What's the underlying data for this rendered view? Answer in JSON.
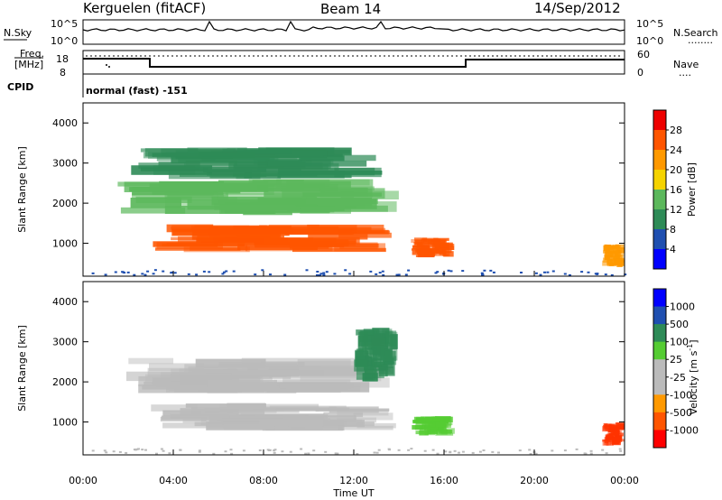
{
  "header": {
    "station": "Kerguelen (fitACF)",
    "beam": "Beam 14",
    "date": "14/Sep/2012"
  },
  "noise_panel": {
    "left_label": "N.Sky",
    "right_label": "N.Search",
    "right_dots": "........",
    "left_ticks": [
      "10^5",
      "10^0"
    ],
    "right_ticks": [
      "10^5",
      "10^0"
    ]
  },
  "freq_panel": {
    "label_line1": "Freq.",
    "label_line2": "[MHz]",
    "right_label": "Nave",
    "right_dots": "....",
    "left_ticks": [
      "18",
      "8"
    ],
    "right_ticks": [
      "60",
      "0"
    ]
  },
  "cpid": {
    "label": "CPID",
    "program": "normal (fast) -151"
  },
  "colors": {
    "power_scale": [
      "#0000ff",
      "#1f4fb0",
      "#2e8b57",
      "#5cb85c",
      "#f5d300",
      "#ff9900",
      "#ff5500",
      "#ee0000"
    ],
    "velocity_scale": [
      "#ff0000",
      "#ff5500",
      "#ff9900",
      "#bbbbbb",
      "#bbbbbb",
      "#55cc33",
      "#2e8b57",
      "#1f4fb0",
      "#0000ff"
    ],
    "ground_scatter": "#bbbbbb"
  },
  "chart_data": [
    {
      "type": "heatmap",
      "title": "",
      "xlabel": "",
      "ylabel": "Slant Range [km]",
      "x_range": [
        "00:00",
        "00:00"
      ],
      "y_range_km": [
        180,
        4500
      ],
      "y_ticks": [
        1000,
        2000,
        3000,
        4000
      ],
      "colorbar": {
        "label": "Power [dB]",
        "ticks": [
          4,
          8,
          12,
          16,
          20,
          24,
          28
        ],
        "range": [
          0,
          32
        ]
      },
      "features": [
        {
          "t_start": 3.0,
          "t_end": 14.0,
          "r_start": 780,
          "r_end": 1480,
          "value_db": 26
        },
        {
          "t_start": 1.5,
          "t_end": 14.2,
          "r_start": 1700,
          "r_end": 2600,
          "value_db": 14
        },
        {
          "t_start": 2.0,
          "t_end": 13.5,
          "r_start": 2600,
          "r_end": 3400,
          "value_db": 10
        },
        {
          "t_start": 14.5,
          "t_end": 16.5,
          "r_start": 650,
          "r_end": 1150,
          "value_db": 24
        },
        {
          "t_start": 23.0,
          "t_end": 24.0,
          "r_start": 400,
          "r_end": 1000,
          "value_db": 22
        }
      ]
    },
    {
      "type": "heatmap",
      "title": "",
      "xlabel": "Time UT",
      "ylabel": "Slant Range [km]",
      "x_range": [
        "00:00",
        "00:00"
      ],
      "x_ticks": [
        "00:00",
        "04:00",
        "08:00",
        "12:00",
        "16:00",
        "20:00",
        "00:00"
      ],
      "y_range_km": [
        180,
        4500
      ],
      "y_ticks": [
        1000,
        2000,
        3000,
        4000
      ],
      "colorbar": {
        "label": "Velocity [m s^-1]",
        "ticks": [
          1000,
          500,
          100,
          25,
          -25,
          -100,
          -500,
          -1000
        ],
        "range": [
          -1200,
          1200
        ]
      },
      "features": [
        {
          "t_start": 3.0,
          "t_end": 14.0,
          "r_start": 780,
          "r_end": 1480,
          "value_ms": 0,
          "ground_scatter": true
        },
        {
          "t_start": 1.5,
          "t_end": 14.2,
          "r_start": 1700,
          "r_end": 2600,
          "value_ms": 0,
          "ground_scatter": true
        },
        {
          "t_start": 14.5,
          "t_end": 16.5,
          "r_start": 650,
          "r_end": 1150,
          "value_ms": 150
        },
        {
          "t_start": 12.0,
          "t_end": 14.0,
          "r_start": 2000,
          "r_end": 3400,
          "value_ms": 300
        },
        {
          "t_start": 23.0,
          "t_end": 24.0,
          "r_start": 400,
          "r_end": 1000,
          "value_ms": -700
        }
      ]
    }
  ]
}
